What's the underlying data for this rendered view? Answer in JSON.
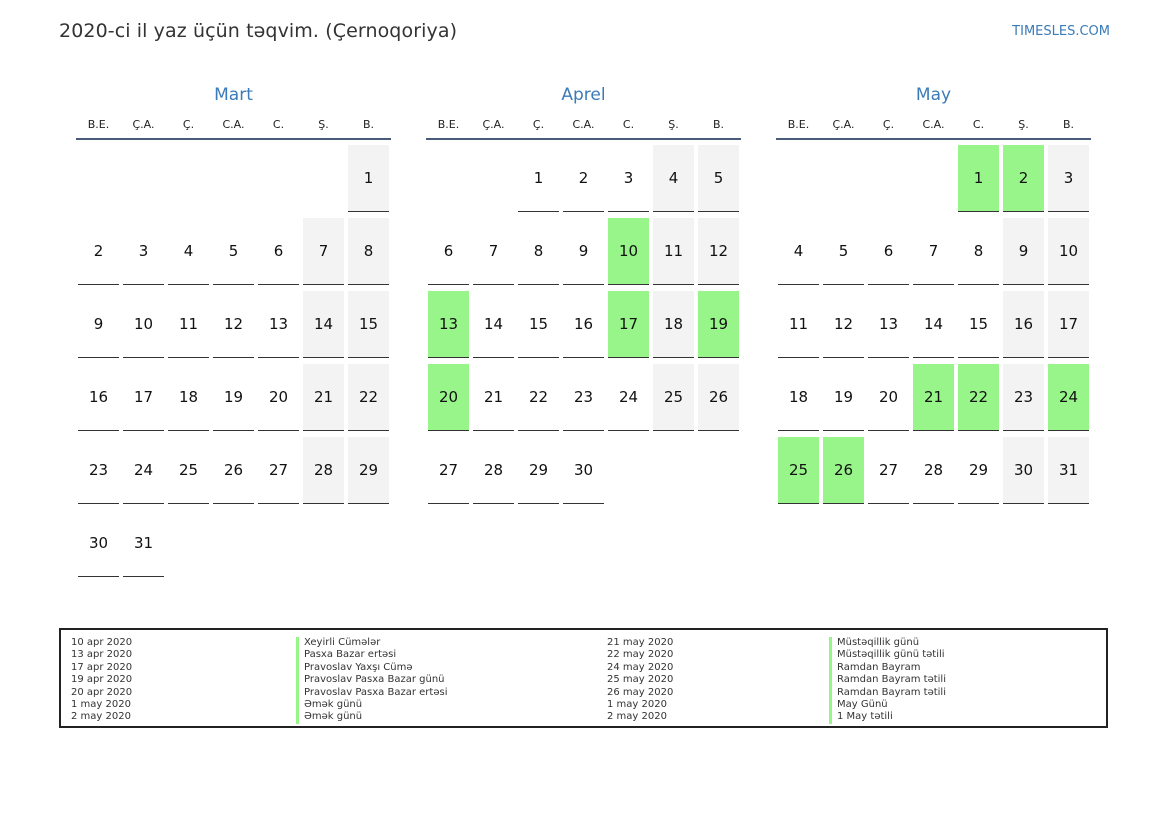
{
  "header": {
    "title": "2020-ci il yaz üçün təqvim. (Çernoqoriya)",
    "site": "TIMESLES.COM"
  },
  "weekdays": [
    "B.E.",
    "Ç.A.",
    "Ç.",
    "C.A.",
    "C.",
    "Ş.",
    "B."
  ],
  "months": [
    {
      "name": "Mart",
      "weeks": [
        [
          null,
          null,
          null,
          null,
          null,
          null,
          "1"
        ],
        [
          "2",
          "3",
          "4",
          "5",
          "6",
          "7",
          "8"
        ],
        [
          "9",
          "10",
          "11",
          "12",
          "13",
          "14",
          "15"
        ],
        [
          "16",
          "17",
          "18",
          "19",
          "20",
          "21",
          "22"
        ],
        [
          "23",
          "24",
          "25",
          "26",
          "27",
          "28",
          "29"
        ],
        [
          "30",
          "31",
          null,
          null,
          null,
          null,
          null
        ]
      ],
      "holidays": []
    },
    {
      "name": "Aprel",
      "weeks": [
        [
          null,
          null,
          "1",
          "2",
          "3",
          "4",
          "5"
        ],
        [
          "6",
          "7",
          "8",
          "9",
          "10",
          "11",
          "12"
        ],
        [
          "13",
          "14",
          "15",
          "16",
          "17",
          "18",
          "19"
        ],
        [
          "20",
          "21",
          "22",
          "23",
          "24",
          "25",
          "26"
        ],
        [
          "27",
          "28",
          "29",
          "30",
          null,
          null,
          null
        ]
      ],
      "holidays": [
        "10",
        "13",
        "17",
        "19",
        "20"
      ]
    },
    {
      "name": "May",
      "weeks": [
        [
          null,
          null,
          null,
          null,
          "1",
          "2",
          "3"
        ],
        [
          "4",
          "5",
          "6",
          "7",
          "8",
          "9",
          "10"
        ],
        [
          "11",
          "12",
          "13",
          "14",
          "15",
          "16",
          "17"
        ],
        [
          "18",
          "19",
          "20",
          "21",
          "22",
          "23",
          "24"
        ],
        [
          "25",
          "26",
          "27",
          "28",
          "29",
          "30",
          "31"
        ]
      ],
      "holidays": [
        "1",
        "2",
        "21",
        "22",
        "24",
        "25",
        "26"
      ]
    }
  ],
  "colors": {
    "holiday": "#98f589",
    "weekend": "#f3f3f3",
    "accent": "#3a7bb8"
  },
  "legend": {
    "left": [
      {
        "date": "10 apr 2020",
        "name": "Xeyirli Cümələr"
      },
      {
        "date": "13 apr 2020",
        "name": "Pasxa Bazar ertəsi"
      },
      {
        "date": "17 apr 2020",
        "name": "Pravoslav Yaxşı Cümə"
      },
      {
        "date": "19 apr 2020",
        "name": "Pravoslav Pasxa Bazar günü"
      },
      {
        "date": "20 apr 2020",
        "name": "Pravoslav Pasxa Bazar ertəsi"
      },
      {
        "date": "1 may 2020",
        "name": "Əmək günü"
      },
      {
        "date": "2 may 2020",
        "name": "Əmək günü"
      }
    ],
    "right": [
      {
        "date": "21 may 2020",
        "name": "Müstəqillik günü"
      },
      {
        "date": "22 may 2020",
        "name": "Müstəqillik günü tətili"
      },
      {
        "date": "24 may 2020",
        "name": "Ramdan Bayram"
      },
      {
        "date": "25 may 2020",
        "name": "Ramdan Bayram tətili"
      },
      {
        "date": "26 may 2020",
        "name": "Ramdan Bayram tətili"
      },
      {
        "date": "1 may 2020",
        "name": "May Günü"
      },
      {
        "date": "2 may 2020",
        "name": "1 May tətili"
      }
    ]
  }
}
